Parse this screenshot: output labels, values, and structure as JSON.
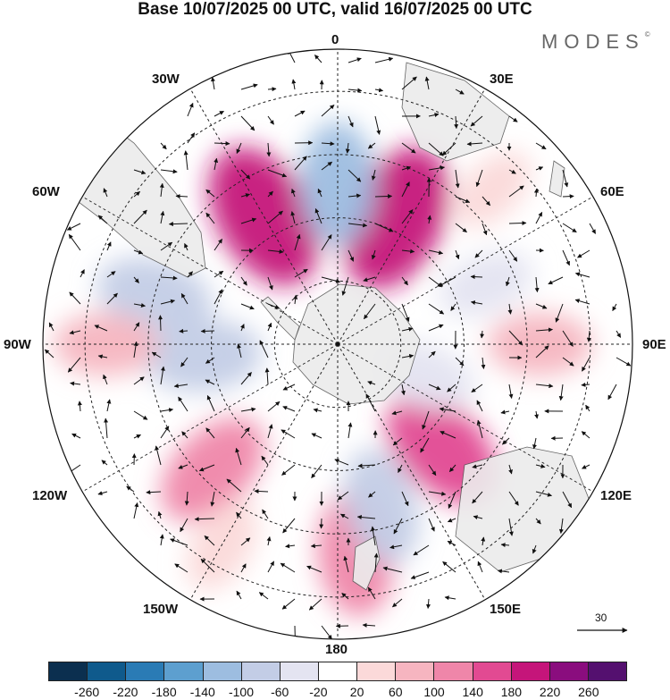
{
  "title": "Base 10/07/2025 00 UTC, valid 16/07/2025 00 UTC",
  "brand": "MODES",
  "brand_mark": "©",
  "longitude_labels": {
    "l0": "0",
    "l30e": "30E",
    "l60e": "60E",
    "l90e": "90E",
    "l120e": "120E",
    "l150e": "150E",
    "l180": "180",
    "l150w": "150W",
    "l120w": "120W",
    "l90w": "90W",
    "l60w": "60W",
    "l30w": "30W"
  },
  "reference_vector": "30",
  "colorbar": {
    "colors": [
      "#0b2f4f",
      "#0f5a8c",
      "#2a7bb5",
      "#5d9fcf",
      "#9dbde0",
      "#c3cde6",
      "#e4e4f1",
      "#ffffff",
      "#fbd9d9",
      "#f6b5c0",
      "#ef86a9",
      "#e24a92",
      "#c5157a",
      "#8a0d7e",
      "#54106f"
    ],
    "ticks": [
      "-260",
      "-220",
      "-180",
      "-140",
      "-100",
      "-60",
      "-20",
      "20",
      "60",
      "100",
      "140",
      "180",
      "220",
      "260"
    ]
  },
  "anomaly_centers": [
    {
      "lon": 25,
      "lat": -57,
      "value": 200
    },
    {
      "lon": -30,
      "lat": -55,
      "value": 200
    },
    {
      "lon": 0,
      "lat": -52,
      "value": -120
    },
    {
      "lon": -75,
      "lat": -45,
      "value": -100
    },
    {
      "lon": 90,
      "lat": -42,
      "value": 60
    },
    {
      "lon": 68,
      "lat": -52,
      "value": -40
    },
    {
      "lon": -95,
      "lat": -58,
      "value": -100
    },
    {
      "lon": 135,
      "lat": -55,
      "value": 150
    },
    {
      "lon": -135,
      "lat": -48,
      "value": 120
    },
    {
      "lon": 175,
      "lat": -40,
      "value": 120
    },
    {
      "lon": -90,
      "lat": -35,
      "value": 60
    },
    {
      "lon": 165,
      "lat": -50,
      "value": -100
    },
    {
      "lon": 110,
      "lat": -68,
      "value": -60
    },
    {
      "lon": 45,
      "lat": -38,
      "value": 20
    },
    {
      "lon": -150,
      "lat": -35,
      "value": 40
    }
  ]
}
